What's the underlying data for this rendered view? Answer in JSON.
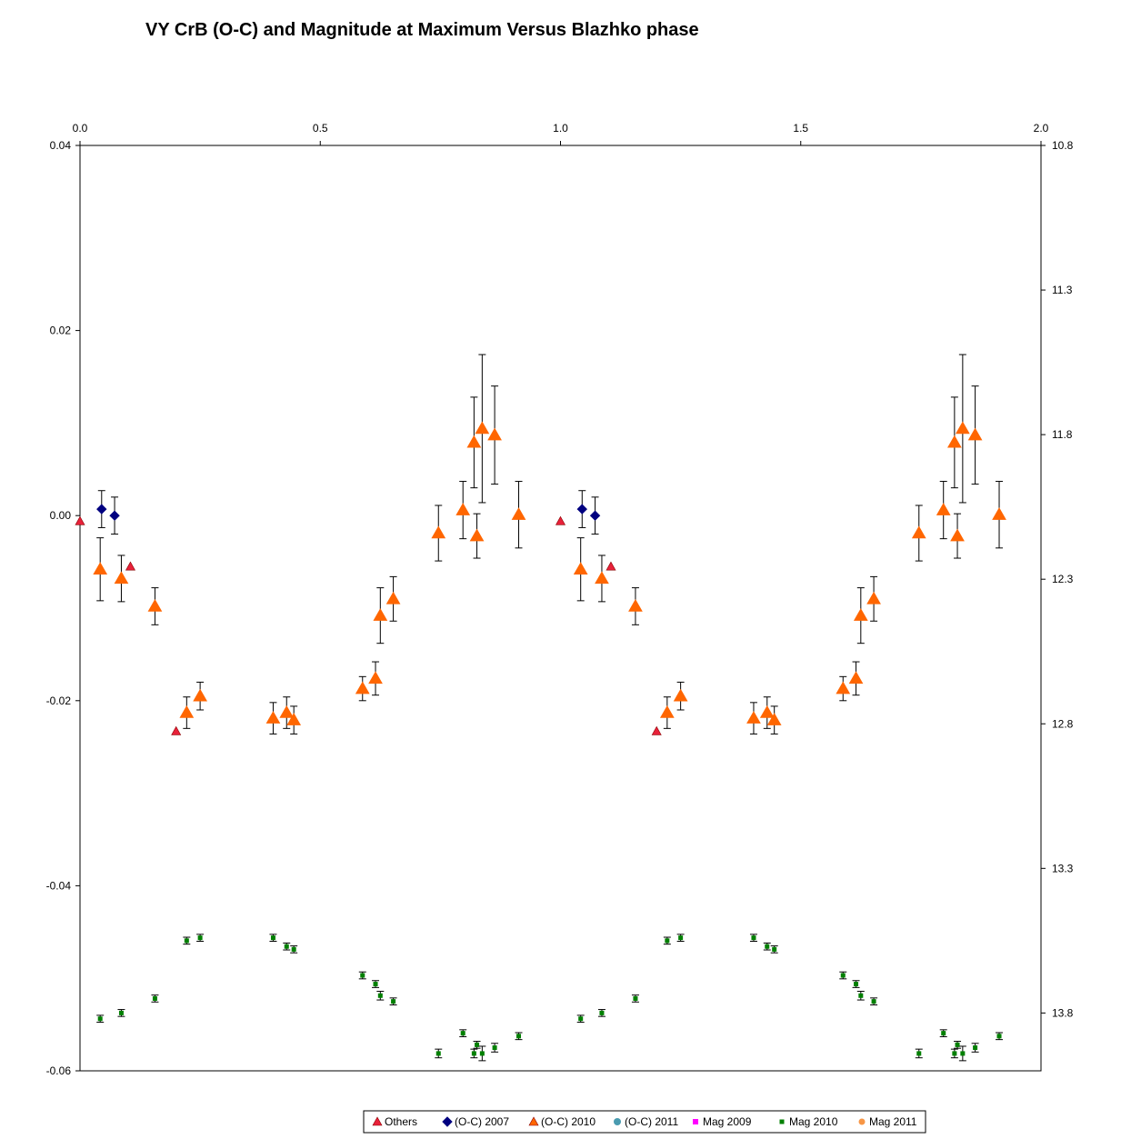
{
  "chart_data": {
    "type": "scatter",
    "title": "VY CrB (O-C) and Magnitude at Maximum Versus Blazhko phase",
    "x_top_axis": {
      "range": [
        0.0,
        2.0
      ],
      "ticks": [
        "0.0",
        "0.5",
        "1.0",
        "1.5",
        "2.0"
      ]
    },
    "y_left_axis": {
      "range": [
        -0.06,
        0.04
      ],
      "ticks": [
        "0.04",
        "0.02",
        "0.00",
        "-0.02",
        "-0.04",
        "-0.06"
      ]
    },
    "y_right_axis": {
      "range": [
        10.8,
        14.0
      ],
      "reversed": true,
      "ticks": [
        "10.8",
        "11.3",
        "11.8",
        "12.3",
        "12.8",
        "13.3",
        "13.8"
      ]
    },
    "grid": false,
    "legend_position": "bottom",
    "series": [
      {
        "name": "Others",
        "axis": "left",
        "marker": "triangle",
        "color": "#e8213a",
        "points": [
          {
            "x": 0.0,
            "y": -0.0006
          },
          {
            "x": 0.105,
            "y": -0.0055
          },
          {
            "x": 0.2,
            "y": -0.0233
          },
          {
            "x": 1.0,
            "y": -0.0006
          },
          {
            "x": 1.105,
            "y": -0.0055
          },
          {
            "x": 1.2,
            "y": -0.0233
          }
        ]
      },
      {
        "name": "(O-C) 2007",
        "axis": "left",
        "marker": "diamond",
        "color": "#000080",
        "points": [
          {
            "x": 0.045,
            "y": 0.0007,
            "err": 0.002
          },
          {
            "x": 0.072,
            "y": 0.0,
            "err": 0.002
          },
          {
            "x": 1.045,
            "y": 0.0007,
            "err": 0.002
          },
          {
            "x": 1.072,
            "y": 0.0,
            "err": 0.002
          }
        ]
      },
      {
        "name": "(O-C) 2010",
        "axis": "left",
        "marker": "triangle-large",
        "color": "#ff6600",
        "points": [
          {
            "x": 0.042,
            "y": -0.0058,
            "err": 0.0034
          },
          {
            "x": 0.086,
            "y": -0.0068,
            "err": 0.0025
          },
          {
            "x": 0.156,
            "y": -0.0098,
            "err": 0.002
          },
          {
            "x": 0.222,
            "y": -0.0213,
            "err": 0.0017
          },
          {
            "x": 0.25,
            "y": -0.0195,
            "err": 0.0015
          },
          {
            "x": 0.402,
            "y": -0.0219,
            "err": 0.0017
          },
          {
            "x": 0.43,
            "y": -0.0213,
            "err": 0.0017
          },
          {
            "x": 0.445,
            "y": -0.0221,
            "err": 0.0015
          },
          {
            "x": 0.588,
            "y": -0.0187,
            "err": 0.0013
          },
          {
            "x": 0.615,
            "y": -0.0176,
            "err": 0.0018
          },
          {
            "x": 0.625,
            "y": -0.0108,
            "err": 0.003
          },
          {
            "x": 0.652,
            "y": -0.009,
            "err": 0.0024
          },
          {
            "x": 0.746,
            "y": -0.0019,
            "err": 0.003
          },
          {
            "x": 0.797,
            "y": 0.0006,
            "err": 0.0031
          },
          {
            "x": 0.82,
            "y": 0.0079,
            "err": 0.0049
          },
          {
            "x": 0.826,
            "y": -0.0022,
            "err": 0.0024
          },
          {
            "x": 0.837,
            "y": 0.0094,
            "err": 0.008
          },
          {
            "x": 0.863,
            "y": 0.0087,
            "err": 0.0053
          },
          {
            "x": 0.913,
            "y": 0.0001,
            "err": 0.0036
          },
          {
            "x": 1.042,
            "y": -0.0058,
            "err": 0.0034
          },
          {
            "x": 1.086,
            "y": -0.0068,
            "err": 0.0025
          },
          {
            "x": 1.156,
            "y": -0.0098,
            "err": 0.002
          },
          {
            "x": 1.222,
            "y": -0.0213,
            "err": 0.0017
          },
          {
            "x": 1.25,
            "y": -0.0195,
            "err": 0.0015
          },
          {
            "x": 1.402,
            "y": -0.0219,
            "err": 0.0017
          },
          {
            "x": 1.43,
            "y": -0.0213,
            "err": 0.0017
          },
          {
            "x": 1.445,
            "y": -0.0221,
            "err": 0.0015
          },
          {
            "x": 1.588,
            "y": -0.0187,
            "err": 0.0013
          },
          {
            "x": 1.615,
            "y": -0.0176,
            "err": 0.0018
          },
          {
            "x": 1.625,
            "y": -0.0108,
            "err": 0.003
          },
          {
            "x": 1.652,
            "y": -0.009,
            "err": 0.0024
          },
          {
            "x": 1.746,
            "y": -0.0019,
            "err": 0.003
          },
          {
            "x": 1.797,
            "y": 0.0006,
            "err": 0.0031
          },
          {
            "x": 1.82,
            "y": 0.0079,
            "err": 0.0049
          },
          {
            "x": 1.826,
            "y": -0.0022,
            "err": 0.0024
          },
          {
            "x": 1.837,
            "y": 0.0094,
            "err": 0.008
          },
          {
            "x": 1.863,
            "y": 0.0087,
            "err": 0.0053
          },
          {
            "x": 1.913,
            "y": 0.0001,
            "err": 0.0036
          }
        ]
      },
      {
        "name": "(O-C) 2011",
        "axis": "left",
        "marker": "circle",
        "color": "#4a9bb0",
        "points": []
      },
      {
        "name": "Mag 2009",
        "axis": "right",
        "marker": "square",
        "color": "#ff00ff",
        "points": []
      },
      {
        "name": "Mag 2010",
        "axis": "right",
        "marker": "square-small",
        "color": "#008000",
        "points": [
          {
            "x": 0.042,
            "y": 13.82,
            "err": 0.012
          },
          {
            "x": 0.086,
            "y": 13.8,
            "err": 0.012
          },
          {
            "x": 0.156,
            "y": 13.75,
            "err": 0.012
          },
          {
            "x": 0.222,
            "y": 13.55,
            "err": 0.012
          },
          {
            "x": 0.25,
            "y": 13.54,
            "err": 0.012
          },
          {
            "x": 0.402,
            "y": 13.54,
            "err": 0.012
          },
          {
            "x": 0.43,
            "y": 13.57,
            "err": 0.012
          },
          {
            "x": 0.445,
            "y": 13.58,
            "err": 0.012
          },
          {
            "x": 0.588,
            "y": 13.67,
            "err": 0.012
          },
          {
            "x": 0.615,
            "y": 13.7,
            "err": 0.012
          },
          {
            "x": 0.625,
            "y": 13.74,
            "err": 0.015
          },
          {
            "x": 0.652,
            "y": 13.76,
            "err": 0.012
          },
          {
            "x": 0.746,
            "y": 13.94,
            "err": 0.015
          },
          {
            "x": 0.797,
            "y": 13.87,
            "err": 0.012
          },
          {
            "x": 0.82,
            "y": 13.94,
            "err": 0.015
          },
          {
            "x": 0.826,
            "y": 13.91,
            "err": 0.012
          },
          {
            "x": 0.837,
            "y": 13.94,
            "err": 0.025
          },
          {
            "x": 0.863,
            "y": 13.92,
            "err": 0.015
          },
          {
            "x": 0.913,
            "y": 13.88,
            "err": 0.012
          },
          {
            "x": 1.042,
            "y": 13.82,
            "err": 0.012
          },
          {
            "x": 1.086,
            "y": 13.8,
            "err": 0.012
          },
          {
            "x": 1.156,
            "y": 13.75,
            "err": 0.012
          },
          {
            "x": 1.222,
            "y": 13.55,
            "err": 0.012
          },
          {
            "x": 1.25,
            "y": 13.54,
            "err": 0.012
          },
          {
            "x": 1.402,
            "y": 13.54,
            "err": 0.012
          },
          {
            "x": 1.43,
            "y": 13.57,
            "err": 0.012
          },
          {
            "x": 1.445,
            "y": 13.58,
            "err": 0.012
          },
          {
            "x": 1.588,
            "y": 13.67,
            "err": 0.012
          },
          {
            "x": 1.615,
            "y": 13.7,
            "err": 0.012
          },
          {
            "x": 1.625,
            "y": 13.74,
            "err": 0.015
          },
          {
            "x": 1.652,
            "y": 13.76,
            "err": 0.012
          },
          {
            "x": 1.746,
            "y": 13.94,
            "err": 0.015
          },
          {
            "x": 1.797,
            "y": 13.87,
            "err": 0.012
          },
          {
            "x": 1.82,
            "y": 13.94,
            "err": 0.015
          },
          {
            "x": 1.826,
            "y": 13.91,
            "err": 0.012
          },
          {
            "x": 1.837,
            "y": 13.94,
            "err": 0.025
          },
          {
            "x": 1.863,
            "y": 13.92,
            "err": 0.015
          },
          {
            "x": 1.913,
            "y": 13.88,
            "err": 0.012
          }
        ]
      },
      {
        "name": "Mag 2011",
        "axis": "right",
        "marker": "circle-small",
        "color": "#f79646",
        "points": []
      }
    ]
  }
}
